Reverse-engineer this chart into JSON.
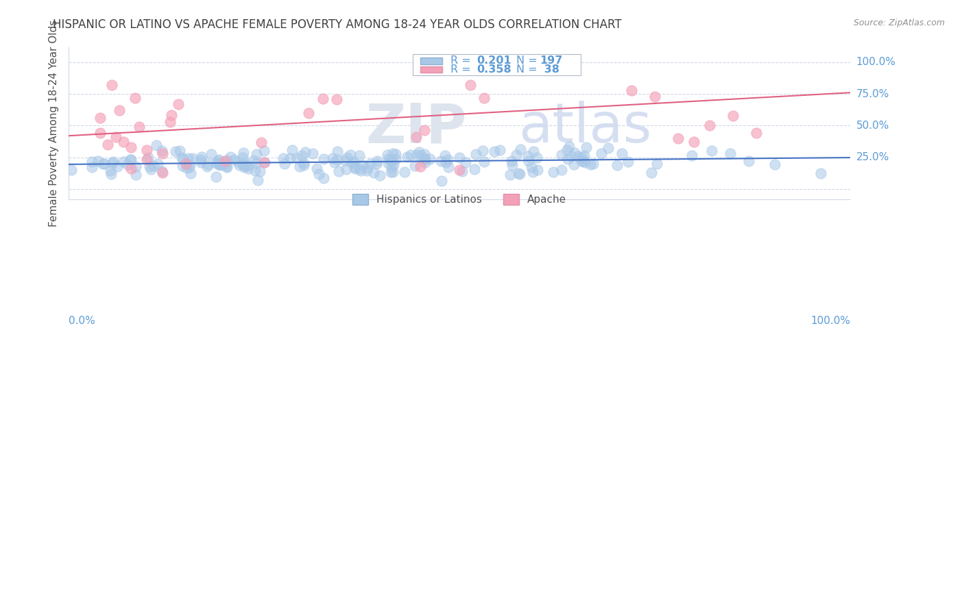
{
  "title": "HISPANIC OR LATINO VS APACHE FEMALE POVERTY AMONG 18-24 YEAR OLDS CORRELATION CHART",
  "source": "Source: ZipAtlas.com",
  "ylabel": "Female Poverty Among 18-24 Year Olds",
  "xlim": [
    0,
    1
  ],
  "ylim": [
    -0.08,
    1.12
  ],
  "ytick_vals": [
    0.0,
    0.25,
    0.5,
    0.75,
    1.0
  ],
  "ytick_labels": [
    "",
    "25.0%",
    "50.0%",
    "75.0%",
    "100.0%"
  ],
  "xtick_labels": [
    "0.0%",
    "100.0%"
  ],
  "color_blue": "#a8c8e8",
  "color_pink": "#f4a0b8",
  "line_blue": "#4472c4",
  "line_pink": "#e06080",
  "tick_color": "#5b9bd5",
  "grid_color": "#d0d8e8",
  "blue_line_y_start": 0.195,
  "blue_line_y_end": 0.248,
  "pink_line_y_start": 0.42,
  "pink_line_y_end": 0.76
}
